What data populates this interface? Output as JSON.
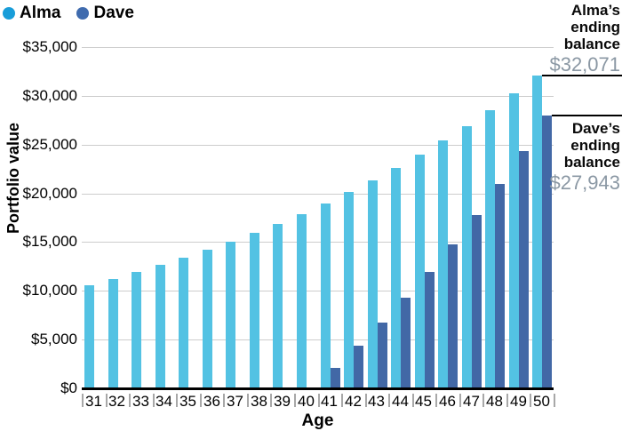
{
  "legend": {
    "items": [
      {
        "label": "Alma",
        "dot_color": "#189dd9"
      },
      {
        "label": "Dave",
        "dot_color": "#3f6bae"
      }
    ]
  },
  "y_axis": {
    "title": "Portfolio value",
    "max": 35000,
    "ticks": [
      {
        "label": "$0",
        "value": 0
      },
      {
        "label": "$5,000",
        "value": 5000
      },
      {
        "label": "$10,000",
        "value": 10000
      },
      {
        "label": "$15,000",
        "value": 15000
      },
      {
        "label": "$20,000",
        "value": 20000
      },
      {
        "label": "$25,000",
        "value": 25000
      },
      {
        "label": "$30,000",
        "value": 30000
      },
      {
        "label": "$35,000",
        "value": 35000
      }
    ]
  },
  "x_axis": {
    "title": "Age"
  },
  "chart_data": {
    "type": "bar",
    "title": "",
    "xlabel": "Age",
    "ylabel": "Portfolio value",
    "ylim": [
      0,
      35000
    ],
    "grid": true,
    "legend_position": "top-left",
    "categories": [
      31,
      32,
      33,
      34,
      35,
      36,
      37,
      38,
      39,
      40,
      41,
      42,
      43,
      44,
      45,
      46,
      47,
      48,
      49,
      50
    ],
    "series": [
      {
        "name": "Alma",
        "color": "#53c2e3",
        "values": [
          10600,
          11236,
          11910,
          12625,
          13382,
          14185,
          15036,
          15938,
          16895,
          17908,
          18983,
          20122,
          21329,
          22609,
          23966,
          25404,
          26928,
          28543,
          30256,
          32071
        ]
      },
      {
        "name": "Dave",
        "color": "#4268a6",
        "values": [
          0,
          0,
          0,
          0,
          0,
          0,
          0,
          0,
          0,
          0,
          2120,
          4367,
          6749,
          9274,
          11951,
          14788,
          17795,
          20983,
          24362,
          27943
        ]
      }
    ]
  },
  "annotations": {
    "alma": {
      "title": "Alma’s ending balance",
      "value": "$32,071"
    },
    "dave": {
      "title": "Dave’s ending balance",
      "value": "$27,943"
    }
  },
  "colors": {
    "grid": "#cdcdcd",
    "axis": "#000000",
    "xtick": "#a8a8a8",
    "annotation_line": "#000000",
    "annotation_value": "#8b98a4"
  }
}
